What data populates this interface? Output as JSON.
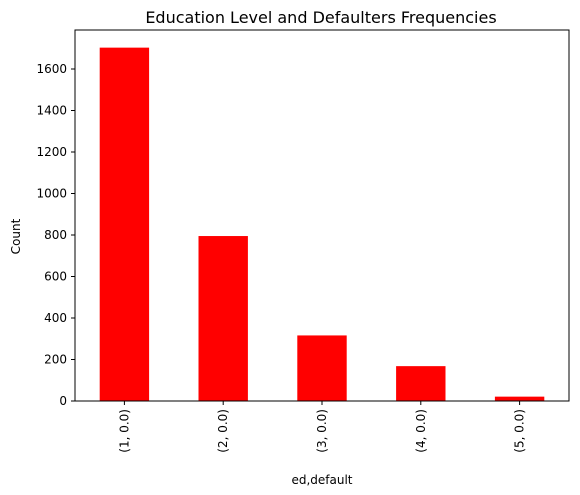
{
  "chart_data": {
    "type": "bar",
    "title": "Education Level and Defaulters Frequencies",
    "xlabel": "ed,default",
    "ylabel": "Count",
    "categories": [
      "(1, 0.0)",
      "(2, 0.0)",
      "(3, 0.0)",
      "(4, 0.0)",
      "(5, 0.0)"
    ],
    "values": [
      1703,
      795,
      316,
      168,
      21
    ],
    "ylim": [
      0,
      1788
    ],
    "yticks": [
      0,
      200,
      400,
      600,
      800,
      1000,
      1200,
      1400,
      1600
    ],
    "bar_color": "#ff0000",
    "grid": false,
    "legend": "none"
  }
}
